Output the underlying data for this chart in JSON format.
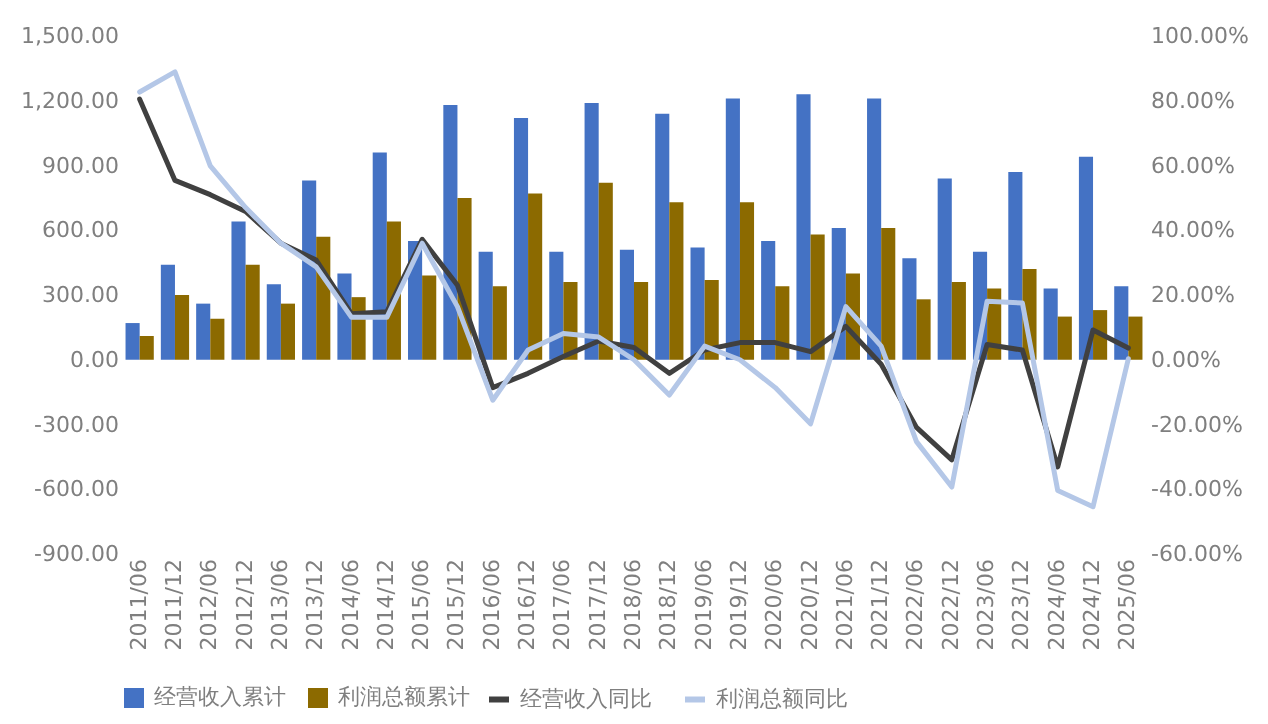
{
  "chart_data": {
    "type": "bar",
    "categories": [
      "2011/06",
      "2011/12",
      "2012/06",
      "2012/12",
      "2013/06",
      "2013/12",
      "2014/06",
      "2014/12",
      "2015/06",
      "2015/12",
      "2016/06",
      "2016/12",
      "2017/06",
      "2017/12",
      "2018/06",
      "2018/12",
      "2019/06",
      "2019/12",
      "2020/06",
      "2020/12",
      "2021/06",
      "2021/12",
      "2022/06",
      "2022/12",
      "2023/06",
      "2023/12",
      "2024/06",
      "2024/12",
      "2025/06"
    ],
    "series": [
      {
        "name": "经营收入累计",
        "color": "#4472c4",
        "values": [
          170,
          440,
          260,
          640,
          350,
          830,
          400,
          960,
          550,
          1180,
          500,
          1120,
          500,
          1190,
          510,
          1140,
          520,
          1210,
          550,
          1230,
          610,
          1210,
          470,
          840,
          500,
          870,
          330,
          940,
          340
        ]
      },
      {
        "name": "利润总额累计",
        "color": "#8c6a00",
        "values": [
          110,
          300,
          190,
          440,
          260,
          570,
          290,
          640,
          390,
          750,
          340,
          770,
          360,
          820,
          360,
          730,
          370,
          730,
          340,
          580,
          400,
          610,
          280,
          360,
          330,
          420,
          200,
          230,
          200
        ]
      },
      {
        "name": "经营收入同比",
        "type": "line",
        "axis": "y2",
        "color": "#404040",
        "values": [
          80.5,
          55.4,
          51,
          45.8,
          36,
          30.8,
          14.2,
          14.8,
          37.2,
          23,
          -8.6,
          -4.2,
          1,
          5.8,
          3.8,
          -4.2,
          3,
          5.3,
          5.3,
          2.5,
          10.3,
          -1.4,
          -20.9,
          -30.9,
          4.7,
          3,
          -33.1,
          9.2,
          3.6
        ]
      },
      {
        "name": "利润总额同比",
        "type": "line",
        "axis": "y2",
        "color": "#b4c7e7",
        "values": [
          82.7,
          88.9,
          59.9,
          47,
          36,
          28.7,
          13.1,
          13.1,
          36,
          16.4,
          -12.5,
          3,
          8.1,
          7,
          0,
          -10.9,
          4.2,
          0,
          -8.6,
          -19.8,
          16.4,
          4.2,
          -25.3,
          -39.3,
          18.1,
          17.5,
          -40.4,
          -45.4,
          0.3
        ]
      }
    ],
    "ylim": [
      -900,
      1500
    ],
    "yticks": [
      {
        "value": -900,
        "label": "-900.00"
      },
      {
        "value": -600,
        "label": "-600.00"
      },
      {
        "value": -300,
        "label": "-300.00"
      },
      {
        "value": 0,
        "label": "0.00"
      },
      {
        "value": 300,
        "label": "300.00"
      },
      {
        "value": 600,
        "label": "600.00"
      },
      {
        "value": 900,
        "label": "900.00"
      },
      {
        "value": 1200,
        "label": "1,200.00"
      },
      {
        "value": 1500,
        "label": "1,500.00"
      }
    ],
    "y2lim": [
      -60,
      100
    ],
    "y2ticks": [
      {
        "value": -60,
        "label": "-60.00%"
      },
      {
        "value": -40,
        "label": "-40.00%"
      },
      {
        "value": -20,
        "label": "-20.00%"
      },
      {
        "value": 0,
        "label": "0.00%"
      },
      {
        "value": 20,
        "label": "20.00%"
      },
      {
        "value": 40,
        "label": "40.00%"
      },
      {
        "value": 60,
        "label": "60.00%"
      },
      {
        "value": 80,
        "label": "80.00%"
      },
      {
        "value": 100,
        "label": "100.00%"
      }
    ],
    "legend": "bottom"
  }
}
